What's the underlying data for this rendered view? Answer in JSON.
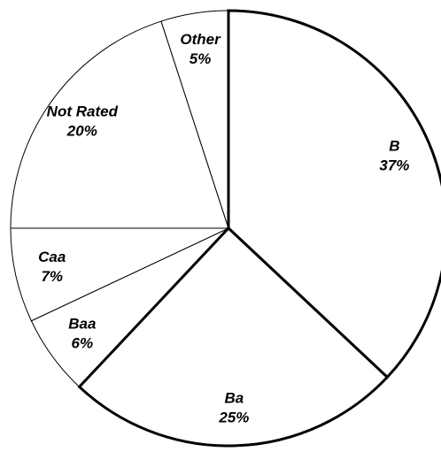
{
  "chart_data": {
    "type": "pie",
    "categories": [
      "B",
      "Ba",
      "Baa",
      "Caa",
      "Not Rated",
      "Other"
    ],
    "values": [
      37,
      25,
      6,
      7,
      20,
      5
    ],
    "value_labels": [
      "37%",
      "25%",
      "6%",
      "7%",
      "20%",
      "5%"
    ],
    "colors": [
      "#ffffff",
      "#ffffff",
      "#ffffff",
      "#ffffff",
      "#ffffff",
      "#ffffff"
    ],
    "border_color": "#000000",
    "border_widths": [
      3,
      3,
      1,
      1,
      1,
      1
    ]
  }
}
